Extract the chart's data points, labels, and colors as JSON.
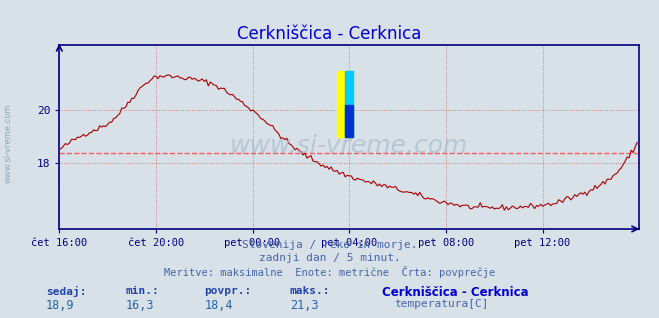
{
  "title": "Cerkniščica - Cerknica",
  "title_color": "#0000cc",
  "background_color": "#d8e0e8",
  "plot_bg_color": "#d8e0e8",
  "line_color": "#aa0000",
  "avg_line_color": "#ff4444",
  "avg_line_style": "dashed",
  "avg_value": 18.4,
  "x_min": 0,
  "x_max": 288,
  "y_min": 15.5,
  "y_max": 22.5,
  "y_ticks": [
    18,
    20
  ],
  "x_tick_labels": [
    "čet 16:00",
    "čet 20:00",
    "pet 00:00",
    "pet 04:00",
    "pet 08:00",
    "pet 12:00"
  ],
  "x_tick_positions": [
    0,
    48,
    96,
    144,
    192,
    240
  ],
  "grid_color": "#cc6666",
  "grid_style": "dotted",
  "axis_color": "#000080",
  "watermark": "www.si-vreme.com",
  "subtitle1": "Slovenija / reke in morje.",
  "subtitle2": "zadnji dan / 5 minut.",
  "subtitle3": "Meritve: maksimalne  Enote: metrične  Črta: povprečje",
  "footer_label1": "sedaj:",
  "footer_label2": "min.:",
  "footer_label3": "povpr.:",
  "footer_label4": "maks.:",
  "footer_val1": "18,9",
  "footer_val2": "16,3",
  "footer_val3": "18,4",
  "footer_val4": "21,3",
  "footer_series": "Cerkniščica - Cerknica",
  "footer_measure": "temperatura[C]",
  "left_watermark": "www.si-vreme.com"
}
